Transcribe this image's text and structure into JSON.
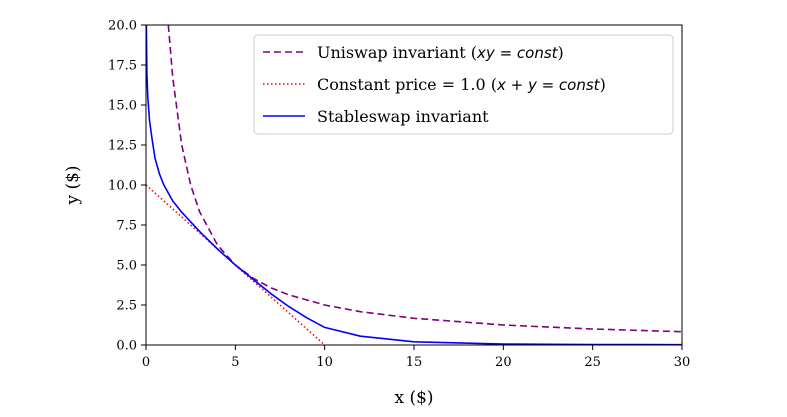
{
  "chart_data": {
    "type": "line",
    "xlabel": "x ($)",
    "ylabel": "y ($)",
    "xlim": [
      0,
      30
    ],
    "ylim": [
      0,
      20
    ],
    "xticks": [
      "0",
      "5",
      "10",
      "15",
      "20",
      "25",
      "30"
    ],
    "yticks": [
      "0.0",
      "2.5",
      "5.0",
      "7.5",
      "10.0",
      "12.5",
      "15.0",
      "17.5",
      "20.0"
    ],
    "grid": false,
    "legend_position": "top-right",
    "series": [
      {
        "name": "Uniswap invariant (xy = const)",
        "legend_parts": [
          {
            "text": "Uniswap invariant (",
            "math": false
          },
          {
            "text": "xy = const",
            "math": true
          },
          {
            "text": ")",
            "math": false
          }
        ],
        "style": "dashed",
        "color": "#800080",
        "x": [
          1.25,
          1.5,
          2,
          2.5,
          3,
          4,
          5,
          6,
          7,
          8,
          10,
          12,
          15,
          20,
          25,
          30
        ],
        "y": [
          20,
          16.67,
          12.5,
          10,
          8.33,
          6.25,
          5,
          4.17,
          3.57,
          3.13,
          2.5,
          2.08,
          1.67,
          1.25,
          1,
          0.83
        ]
      },
      {
        "name": "Constant price = 1.0 (x + y = const)",
        "legend_parts": [
          {
            "text": "Constant price = 1.0 (",
            "math": false
          },
          {
            "text": "x + y = const",
            "math": true
          },
          {
            "text": ")",
            "math": false
          }
        ],
        "style": "dotted",
        "color": "#ff0000",
        "x": [
          0,
          10
        ],
        "y": [
          10,
          0
        ]
      },
      {
        "name": "Stableswap invariant",
        "legend_parts": [
          {
            "text": "Stableswap invariant",
            "math": false
          }
        ],
        "style": "solid",
        "color": "#0000ff",
        "x": [
          0.02,
          0.05,
          0.1,
          0.2,
          0.35,
          0.5,
          0.75,
          1,
          1.5,
          2,
          3,
          4,
          5,
          6,
          7,
          8,
          9,
          10,
          12,
          15,
          20,
          25,
          30
        ],
        "y": [
          20,
          17,
          15.5,
          14,
          12.8,
          11.7,
          10.7,
          10,
          9,
          8.3,
          7.1,
          6.0,
          5.0,
          4.1,
          3.2,
          2.4,
          1.7,
          1.1,
          0.55,
          0.2,
          0.06,
          0.03,
          0.02
        ]
      }
    ]
  }
}
